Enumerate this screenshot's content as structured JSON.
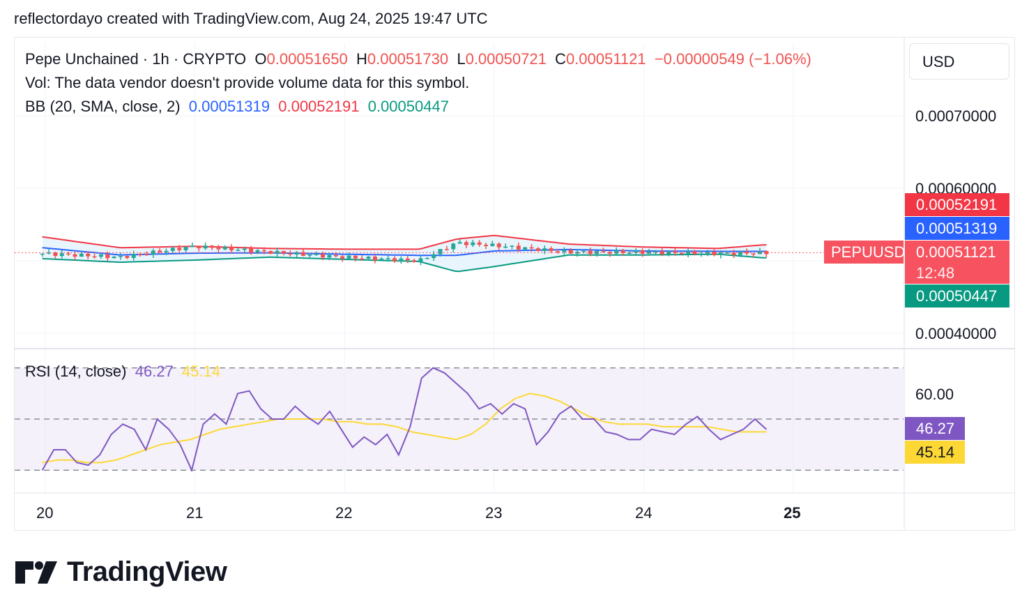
{
  "caption": "reflectordayo created with TradingView.com, Aug 24, 2025 19:47 UTC",
  "header": {
    "symbol": "Pepe Unchained · 1h · CRYPTO",
    "o_label": "O",
    "o_value": "0.00051650",
    "h_label": "H",
    "h_value": "0.00051730",
    "l_label": "L",
    "l_value": "0.00050721",
    "c_label": "C",
    "c_value": "0.00051121",
    "change": "−0.00000549 (−1.06%)",
    "volume_note": "Vol: The data vendor doesn't provide volume data for this symbol.",
    "bb_label": "BB (20, SMA, close, 2)",
    "bb_basis": "0.00051319",
    "bb_upper": "0.00052191",
    "bb_lower": "0.00050447",
    "rsi_label": "RSI (14, close)",
    "rsi_value": "46.27",
    "rsi_ma_value": "45.14"
  },
  "price_scale": {
    "currency": "USD",
    "ticks": [
      "0.00070000",
      "0.00060000",
      "0.00040000"
    ],
    "tags": {
      "upper": "0.00052191",
      "basis": "0.00051319",
      "price": "0.00051121",
      "countdown": "12:48",
      "lower": "0.00050447",
      "symbol": "PEPUUSD"
    }
  },
  "rsi_scale": {
    "ticks": [
      "60.00"
    ],
    "tags": {
      "rsi": "46.27",
      "ma": "45.14"
    }
  },
  "time_axis": {
    "labels": [
      "20",
      "21",
      "22",
      "23",
      "24",
      "25"
    ]
  },
  "colors": {
    "up": "#26a69a",
    "down": "#ef5350",
    "bb_basis": "#2962ff",
    "bb_upper": "#f23645",
    "bb_lower": "#089981",
    "bb_fill": "#e3f2fd",
    "rsi": "#7e57c2",
    "rsi_ma": "#fdd835",
    "rsi_band": "#ede7f6",
    "tag_lower": "#089981",
    "tag_price": "#f7525f"
  },
  "brand": "TradingView",
  "chart_data": [
    {
      "type": "candlestick",
      "title": "Pepe Unchained · 1h · CRYPTO",
      "x_axis": "time (hourly, Aug 20 – Aug 25)",
      "x_ticks": [
        "20",
        "21",
        "22",
        "23",
        "24",
        "25"
      ],
      "ylim": [
        0.0004,
        0.0007
      ],
      "y_ticks": [
        0.0004,
        0.0006,
        0.0007
      ],
      "last": {
        "open": 0.0005165,
        "high": 0.0005173,
        "low": 0.00050721,
        "close": 0.00051121
      },
      "series": [
        {
          "name": "BB basis",
          "last_value": 0.00051319
        },
        {
          "name": "BB upper",
          "last_value": 0.00052191
        },
        {
          "name": "BB lower",
          "last_value": 0.00050447
        }
      ],
      "approx_points": {
        "day": [
          19.98,
          20.5,
          21.0,
          21.5,
          22.0,
          22.5,
          22.75,
          23.0,
          23.5,
          24.0,
          24.5,
          24.8
        ],
        "close": [
          0.00051,
          0.000505,
          0.00052,
          0.000512,
          0.000505,
          0.0005,
          0.000525,
          0.000521,
          0.000512,
          0.000512,
          0.00051,
          0.000511
        ],
        "bb_upper": [
          0.000533,
          0.000518,
          0.00052,
          0.000517,
          0.000516,
          0.000516,
          0.00053,
          0.000535,
          0.000523,
          0.000519,
          0.000517,
          0.000522
        ],
        "bb_lower": [
          0.000503,
          0.000498,
          0.000501,
          0.000505,
          0.000502,
          0.000499,
          0.000485,
          0.000492,
          0.000508,
          0.000508,
          0.000509,
          0.000504
        ]
      }
    },
    {
      "type": "line",
      "title": "RSI (14, close)",
      "y_ticks": [
        60
      ],
      "bands": [
        30,
        50,
        70
      ],
      "series": [
        {
          "name": "RSI",
          "last_value": 46.27,
          "approx_values": [
            30,
            38,
            38,
            33,
            32,
            36,
            44,
            48,
            46,
            38,
            50,
            46,
            40,
            30,
            48,
            52,
            48,
            60,
            61,
            54,
            50,
            50,
            55,
            51,
            48,
            53,
            46,
            39,
            43,
            40,
            44,
            36,
            47,
            66,
            70,
            68,
            64,
            60,
            54,
            56,
            52,
            56,
            54,
            40,
            45,
            52,
            55,
            50,
            50,
            45,
            44,
            42,
            42,
            46,
            45,
            44,
            48,
            51,
            46,
            42,
            44,
            46,
            50,
            46
          ]
        },
        {
          "name": "RSI MA",
          "last_value": 45.14,
          "approx_values": [
            33,
            34,
            34,
            33,
            33,
            34,
            36,
            38,
            40,
            41,
            42,
            44,
            46,
            47,
            48,
            49,
            50,
            50,
            50,
            50,
            49,
            49,
            48,
            48,
            47,
            45,
            44,
            43,
            42,
            44,
            48,
            54,
            58,
            60,
            59,
            57,
            54,
            51,
            49,
            48,
            48,
            48,
            47,
            47,
            47,
            47,
            46,
            45,
            45,
            45
          ]
        }
      ]
    }
  ]
}
